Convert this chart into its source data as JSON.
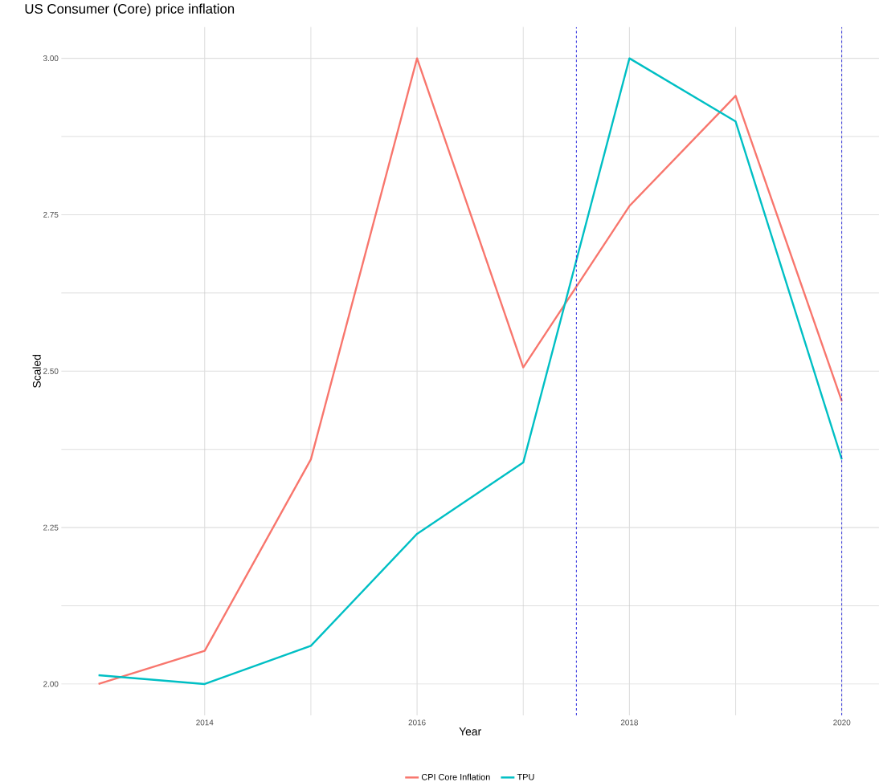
{
  "chart_data": {
    "type": "line",
    "title": "US Consumer (Core) price inflation",
    "xlabel": "Year",
    "ylabel": "Scaled",
    "x": [
      2013,
      2014,
      2015,
      2016,
      2017,
      2018,
      2019,
      2020
    ],
    "series": [
      {
        "name": "CPI Core Inflation",
        "color": "#f8766d",
        "values": [
          2.0,
          2.053,
          2.359,
          3.0,
          2.506,
          2.764,
          2.94,
          2.452
        ]
      },
      {
        "name": "TPU",
        "color": "#00bfc4",
        "values": [
          2.014,
          2.0,
          2.061,
          2.24,
          2.354,
          3.0,
          2.899,
          2.359
        ]
      }
    ],
    "xlim": [
      2012.65,
      2020.35
    ],
    "ylim": [
      1.95,
      3.05
    ],
    "xticks": [
      2014,
      2016,
      2018,
      2020
    ],
    "yticks": [
      {
        "value": 2,
        "label": "2.00"
      },
      {
        "value": 2.25,
        "label": "2.25"
      },
      {
        "value": 2.5,
        "label": "2.50"
      },
      {
        "value": 2.75,
        "label": "2.75"
      },
      {
        "value": 3,
        "label": "3.00"
      }
    ],
    "ref_lines": [
      {
        "axis": "x",
        "value": 2017.5,
        "color": "#2b2bdf",
        "line_style": "dashed"
      },
      {
        "axis": "x",
        "value": 2020,
        "color": "#2b2bdf",
        "line_style": "dashed"
      }
    ],
    "grid": true,
    "legend": "bottom"
  }
}
